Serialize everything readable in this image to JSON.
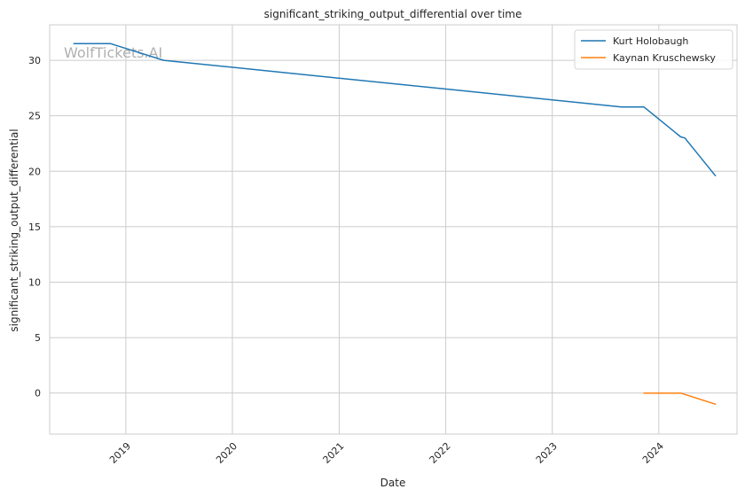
{
  "chart_data": {
    "type": "line",
    "title": "significant_striking_output_differential over time",
    "xlabel": "Date",
    "ylabel": "significant_striking_output_differential",
    "watermark": "WolfTickets.AI",
    "xlim": [
      "2018-04-15",
      "2024-09-25"
    ],
    "ylim": [
      -3.7,
      33.2
    ],
    "x_ticks": [
      "2019-01-01",
      "2020-01-01",
      "2021-01-01",
      "2022-01-01",
      "2023-01-01",
      "2024-01-01"
    ],
    "x_tick_labels": [
      "2019",
      "2020",
      "2021",
      "2022",
      "2023",
      "2024"
    ],
    "y_ticks": [
      0,
      5,
      10,
      15,
      20,
      25,
      30
    ],
    "y_tick_labels": [
      "0",
      "5",
      "10",
      "15",
      "20",
      "25",
      "30"
    ],
    "grid": true,
    "legend_position": "top-right",
    "colors": {
      "series1": "#1f77b4",
      "series2": "#ff7f0e",
      "grid": "#cccccc",
      "axis": "#cccccc"
    },
    "series": [
      {
        "name": "Kurt Holobaugh",
        "color": "#1f77b4",
        "x": [
          "2018-07-07",
          "2018-11-10",
          "2019-05-11",
          "2023-08-26",
          "2023-11-11",
          "2024-03-16",
          "2024-03-30",
          "2024-07-13"
        ],
        "y": [
          31.5,
          31.5,
          30.0,
          25.8,
          25.8,
          23.1,
          23.0,
          19.6
        ]
      },
      {
        "name": "Kaynan Kruschewsky",
        "color": "#ff7f0e",
        "x": [
          "2023-11-11",
          "2024-03-16",
          "2024-07-13"
        ],
        "y": [
          0.0,
          0.0,
          -1.0
        ]
      }
    ]
  }
}
